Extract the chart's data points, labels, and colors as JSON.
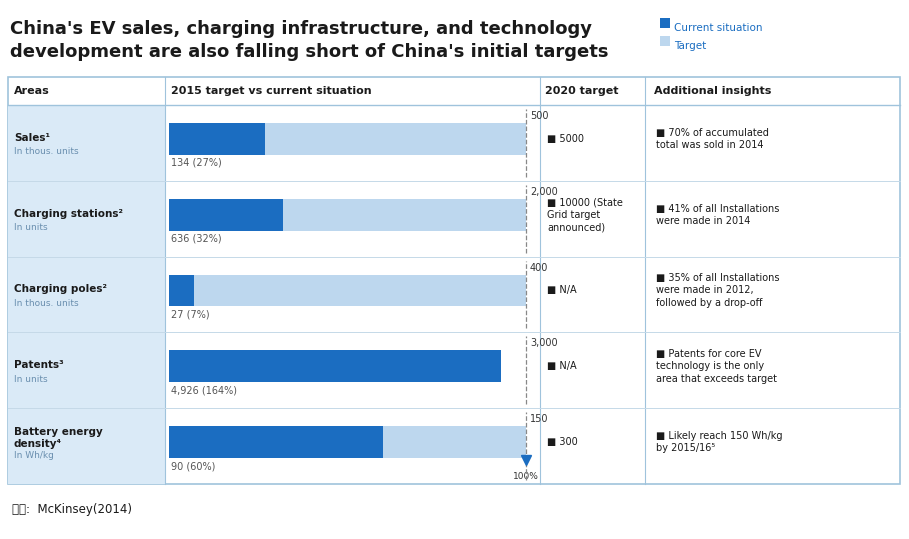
{
  "title_line1": "China's EV sales, charging infrastructure, and technology",
  "title_line2": "development are also falling short of China's initial targets",
  "legend_current": "Current situation",
  "legend_target": "Target",
  "color_current": "#1B6DC1",
  "color_target": "#BDD7EE",
  "color_area_bg": "#DAEAF7",
  "color_border": "#9FC3DC",
  "source_text": "자료:  McKinsey(2014)",
  "rows": [
    {
      "area_bold": "Sales¹",
      "area_sub": "In thous. units",
      "current_pct": 0.27,
      "current_label": "134 (27%)",
      "target_label": "500",
      "target_2020": "5000",
      "insight": "70% of accumulated\ntotal was sold in 2014"
    },
    {
      "area_bold": "Charging stations²",
      "area_sub": "In units",
      "current_pct": 0.32,
      "current_label": "636 (32%)",
      "target_label": "2,000",
      "target_2020": "10000 (State\nGrid target\nannounced)",
      "insight": "41% of all Installations\nwere made in 2014"
    },
    {
      "area_bold": "Charging poles²",
      "area_sub": "In thous. units",
      "current_pct": 0.07,
      "current_label": "27 (7%)",
      "target_label": "400",
      "target_2020": "N/A",
      "insight": "35% of all Installations\nwere made in 2012,\nfollowed by a drop-off"
    },
    {
      "area_bold": "Patents³",
      "area_sub": "In units",
      "current_pct": 1.64,
      "current_label": "4,926 (164%)",
      "target_label": "3,000",
      "target_2020": "N/A",
      "insight": "Patents for core EV\ntechnology is the only\narea that exceeds target"
    },
    {
      "area_bold": "Battery energy\ndensity⁴",
      "area_sub": "In Wh/kg",
      "current_pct": 0.6,
      "current_label": "90 (60%)",
      "target_label": "150",
      "target_2020": "300",
      "insight": "Likely reach 150 Wh/kg\nby 2015/16⁵",
      "show_100pct_marker": true
    }
  ],
  "fig_bg": "#FFFFFF",
  "table_bg": "#FFFFFF",
  "bullet": "■ "
}
